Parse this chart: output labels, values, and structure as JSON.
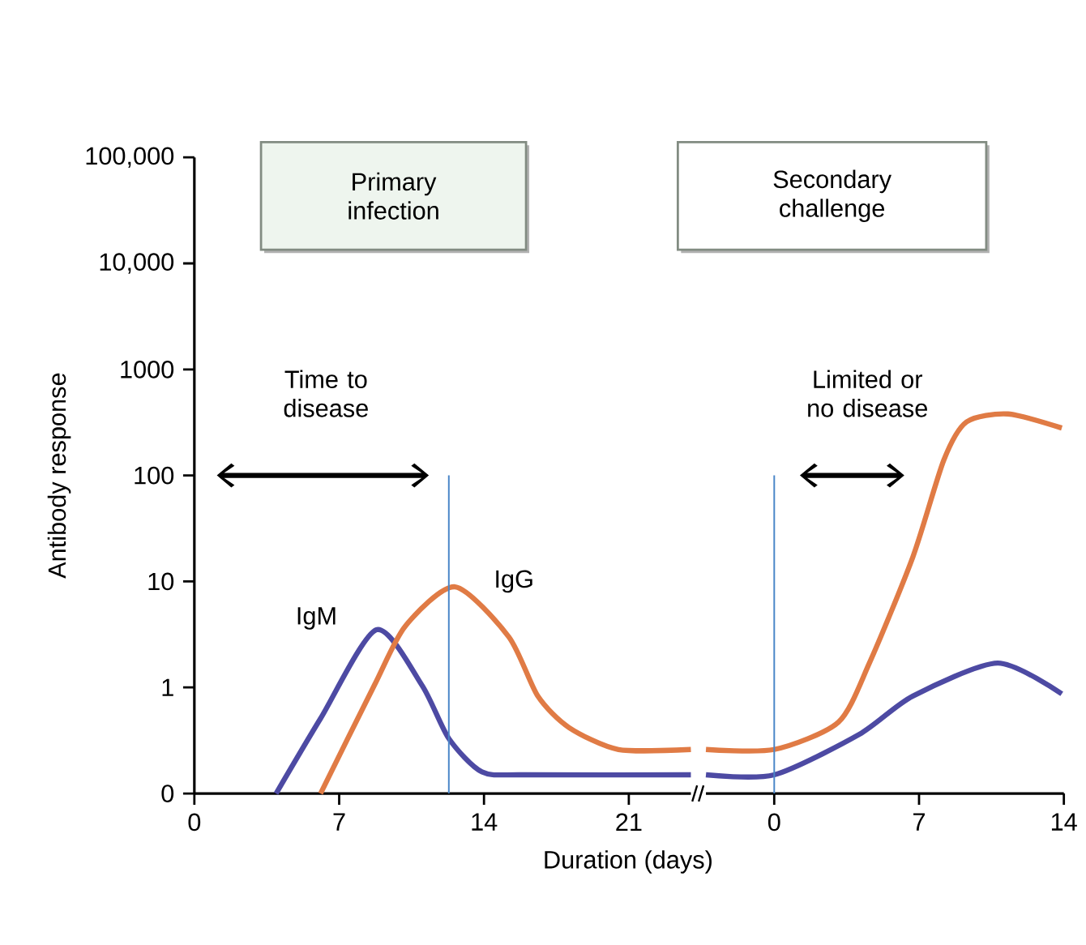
{
  "chart_data": [
    {
      "type": "line",
      "xlabel": "Duration (days)",
      "ylabel": "Antibody response",
      "log": "y",
      "xlim": [
        0,
        24
      ],
      "xticks": [
        0,
        7,
        14,
        21
      ],
      "ylim": [
        0.1,
        100000
      ],
      "yticks": [
        {
          "value": 0.1,
          "label": "0"
        },
        1,
        10,
        100,
        1000,
        {
          "value": 10000,
          "label": "10,000"
        },
        {
          "value": 100000,
          "label": "100,000"
        }
      ],
      "series": [
        {
          "name": "IgM",
          "color": "#4d4aa3",
          "x": [
            3.95,
            6.1,
            8.8,
            11.0,
            12.3,
            13.9,
            16,
            24
          ],
          "values": [
            0.1,
            0.51,
            3.5,
            1.05,
            0.33,
            0.16,
            0.15,
            0.15
          ]
        },
        {
          "name": "IgG",
          "color": "#e07b45",
          "x": [
            6.1,
            8.7,
            10.2,
            12.6,
            15.2,
            16.6,
            18.1,
            20.5,
            24
          ],
          "values": [
            0.1,
            1.05,
            3.8,
            8.9,
            3,
            0.83,
            0.42,
            0.26,
            0.26
          ]
        },
        {
          "color": "#4a86c8",
          "x": [
            12.3,
            12.3
          ],
          "values": [
            0.1,
            100
          ]
        }
      ],
      "annotations": [
        "Primary infection",
        "Time to disease"
      ],
      "legend": false,
      "grid": false,
      "marker": "none",
      "line_style": "solid"
    },
    {
      "type": "line",
      "log": "y",
      "xlim": [
        -3.3,
        14
      ],
      "xticks": [
        0,
        7,
        14
      ],
      "ylim": [
        0.1,
        100000
      ],
      "yticks": [
        {
          "value": 0.1,
          "label": null
        },
        1,
        10,
        100,
        1000,
        10000,
        100000
      ],
      "tick_labels": "x",
      "series": [
        {
          "color": "#4d4aa3",
          "x": [
            -3.3,
            0,
            4.1,
            6.7,
            10.8,
            13.9
          ],
          "values": [
            0.15,
            0.15,
            0.36,
            0.83,
            1.7,
            0.87
          ]
        },
        {
          "color": "#e07b45",
          "x": [
            -3.3,
            0,
            3.1,
            4.6,
            6.7,
            8.2,
            9.3,
            11.3,
            13.9
          ],
          "values": [
            0.26,
            0.26,
            0.47,
            1.7,
            17,
            140,
            320,
            380,
            280
          ]
        },
        {
          "color": "#4a86c8",
          "x": [
            0,
            0
          ],
          "values": [
            0.1,
            100
          ]
        }
      ],
      "annotations": [
        "Secondary challenge",
        "Limited or no disease"
      ],
      "legend": false,
      "grid": false,
      "marker": "none",
      "line_style": "solid"
    }
  ]
}
